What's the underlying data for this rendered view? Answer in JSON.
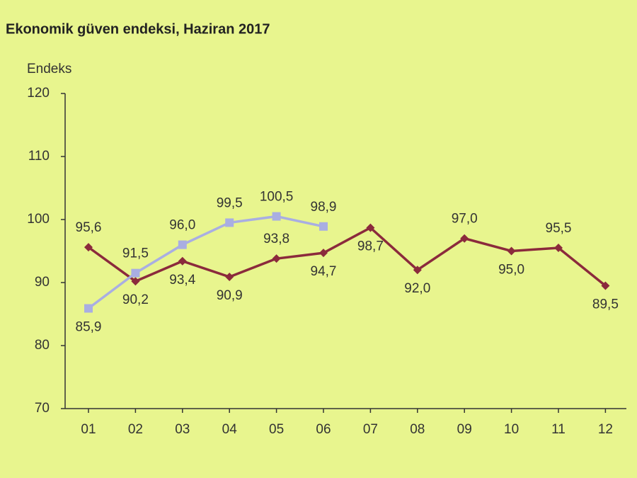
{
  "chart_data": {
    "type": "line",
    "title": "Ekonomik güven endeksi, Haziran 2017",
    "y_label": "Endeks",
    "categories": [
      "01",
      "02",
      "03",
      "04",
      "05",
      "06",
      "07",
      "08",
      "09",
      "10",
      "11",
      "12"
    ],
    "series": [
      {
        "color": "#8b2a3c",
        "values": [
          95.6,
          90.2,
          93.4,
          90.9,
          93.8,
          94.7,
          98.7,
          92.0,
          97.0,
          95.0,
          95.5,
          89.5
        ],
        "value_labels": [
          "95,6",
          "90,2",
          "93,4",
          "90,9",
          "93,8",
          "94,7",
          "98,7",
          "92,0",
          "97,0",
          "95,0",
          "95,5",
          "89,5"
        ]
      },
      {
        "color": "#a9aee2",
        "values": [
          85.9,
          91.5,
          96.0,
          99.5,
          100.5,
          98.9,
          null,
          null,
          null,
          null,
          null,
          null
        ],
        "value_labels": [
          "85,9",
          "91,5",
          "96,0",
          "99,5",
          "100,5",
          "98,9",
          null,
          null,
          null,
          null,
          null,
          null
        ]
      }
    ],
    "ylim": [
      70,
      120
    ],
    "yticks": [
      70,
      80,
      90,
      100,
      110,
      120
    ]
  }
}
